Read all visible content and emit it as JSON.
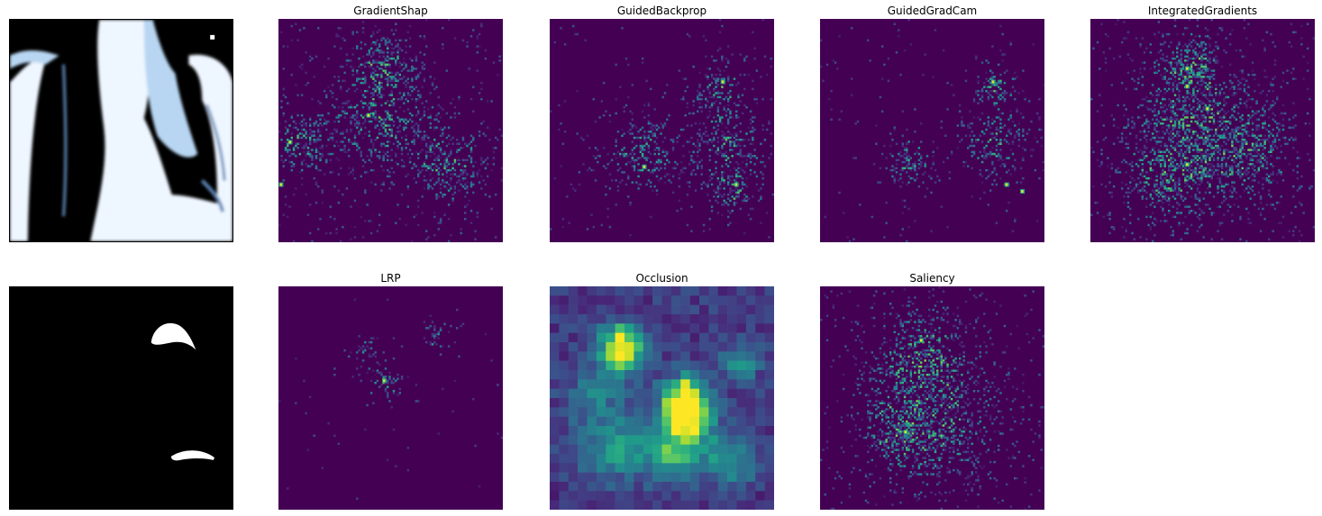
{
  "chart_data": {
    "type": "heatmap",
    "panels": [
      {
        "id": "xray",
        "title": "",
        "kind": "xray",
        "row": 0,
        "col": 0
      },
      {
        "id": "gradientshap",
        "title": "GradientShap",
        "kind": "sparse",
        "row": 0,
        "col": 1
      },
      {
        "id": "guidedbackprop",
        "title": "GuidedBackprop",
        "kind": "sparse",
        "row": 0,
        "col": 2
      },
      {
        "id": "guidedgradcam",
        "title": "GuidedGradCam",
        "kind": "sparse",
        "row": 0,
        "col": 3
      },
      {
        "id": "integratedgradients",
        "title": "IntegratedGradients",
        "kind": "sparse",
        "row": 0,
        "col": 4
      },
      {
        "id": "mask",
        "title": "",
        "kind": "mask",
        "row": 1,
        "col": 0
      },
      {
        "id": "lrp",
        "title": "LRP",
        "kind": "sparse",
        "row": 1,
        "col": 1
      },
      {
        "id": "occlusion",
        "title": "Occlusion",
        "kind": "blocky",
        "row": 1,
        "col": 2
      },
      {
        "id": "saliency",
        "title": "Saliency",
        "kind": "sparse",
        "row": 1,
        "col": 3
      }
    ],
    "colormap": "viridis",
    "colors": {
      "viridis_low": "#440154",
      "viridis_mid": "#21918c",
      "viridis_high": "#fde725"
    }
  }
}
